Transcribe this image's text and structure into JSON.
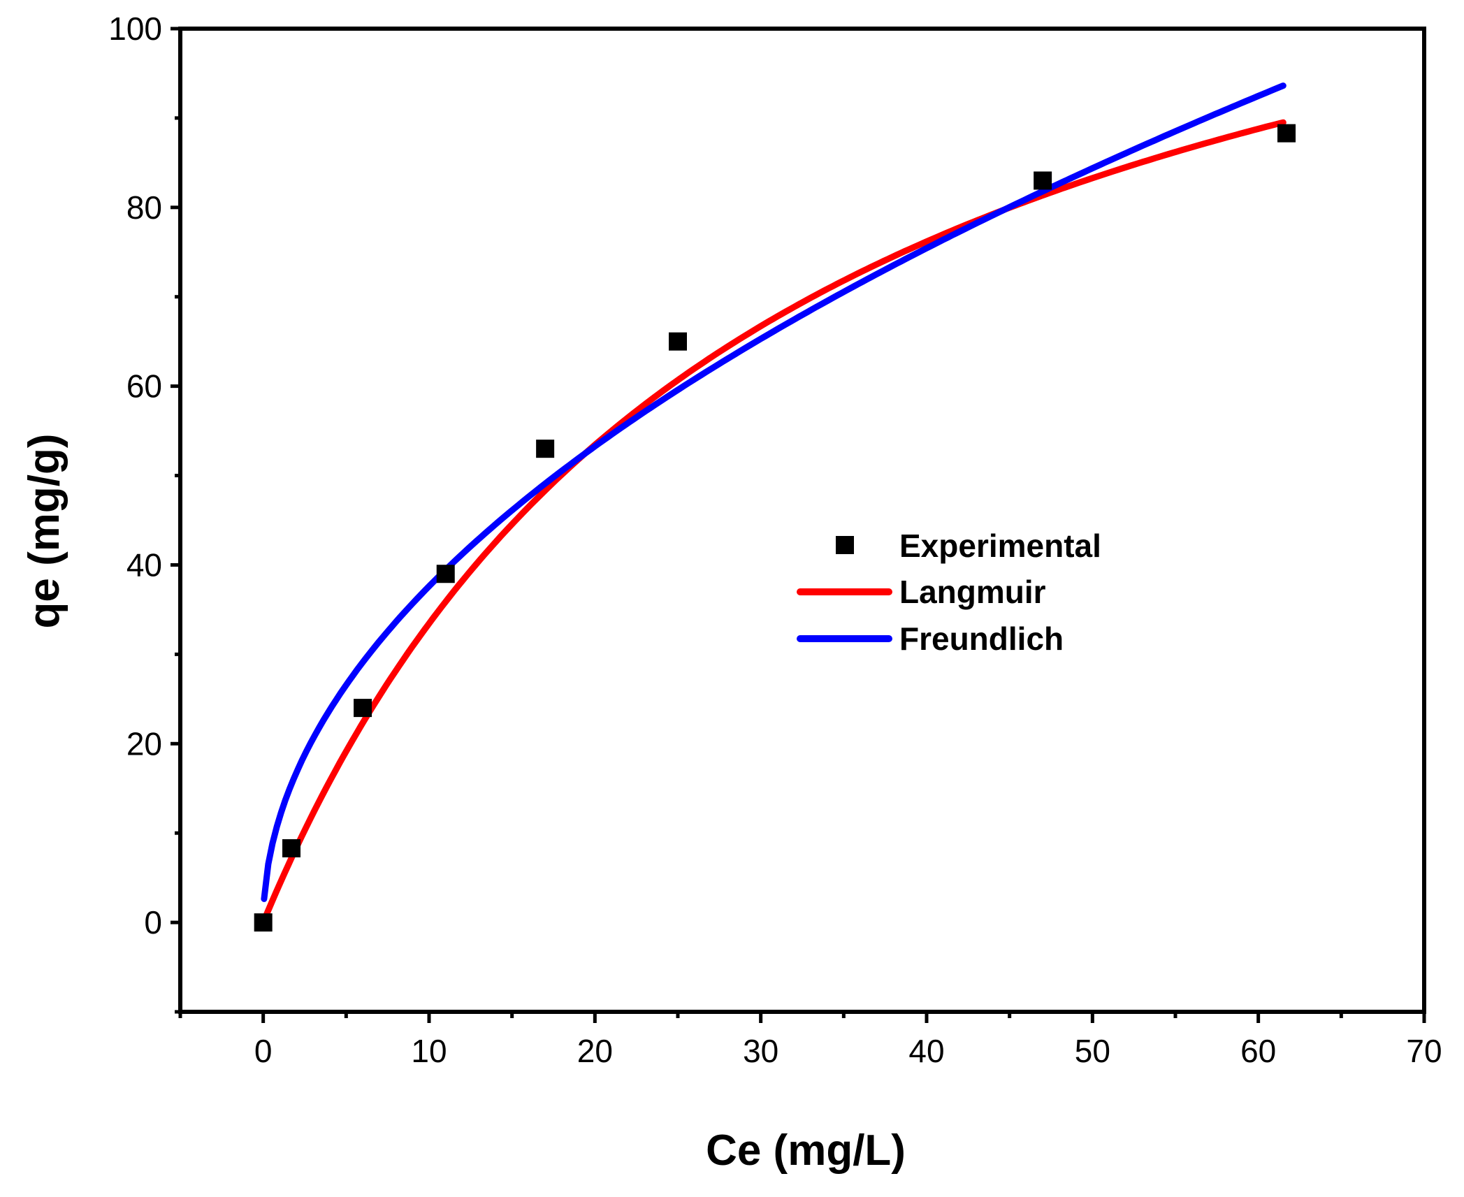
{
  "chart_data": {
    "type": "scatter",
    "title": "",
    "xlabel": "Ce (mg/L)",
    "ylabel": "qe (mg/g)",
    "xlim": [
      -5,
      70
    ],
    "ylim": [
      -10,
      100
    ],
    "grid": false,
    "legend_position": "center-right",
    "x_ticks": [
      0,
      10,
      20,
      30,
      40,
      50,
      60,
      70
    ],
    "x_tick_labels": [
      "0",
      "10",
      "20",
      "30",
      "40",
      "50",
      "60",
      "70"
    ],
    "y_ticks": [
      0,
      20,
      40,
      60,
      80,
      100
    ],
    "y_tick_labels": [
      "0",
      "20",
      "40",
      "60",
      "80",
      "100"
    ],
    "series": [
      {
        "name": "Experimental",
        "kind": "scatter",
        "color": "#000000",
        "marker": "square",
        "points": [
          {
            "x": 0,
            "y": 0
          },
          {
            "x": 1.7,
            "y": 8.3
          },
          {
            "x": 6,
            "y": 24
          },
          {
            "x": 11,
            "y": 39
          },
          {
            "x": 17,
            "y": 53
          },
          {
            "x": 25,
            "y": 65
          },
          {
            "x": 47,
            "y": 83
          },
          {
            "x": 61.7,
            "y": 88.3
          }
        ]
      },
      {
        "name": "Langmuir",
        "kind": "line",
        "color": "#ff0000",
        "model": "langmuir",
        "params": {
          "qmax": 132.7,
          "KL": 0.0337
        },
        "x_range": [
          0,
          61.5
        ]
      },
      {
        "name": "Freundlich",
        "kind": "line",
        "color": "#0000ff",
        "model": "freundlich",
        "params": {
          "KF": 11.84,
          "n_inv": 0.502
        },
        "x_range": [
          0.05,
          61.5
        ]
      }
    ]
  }
}
